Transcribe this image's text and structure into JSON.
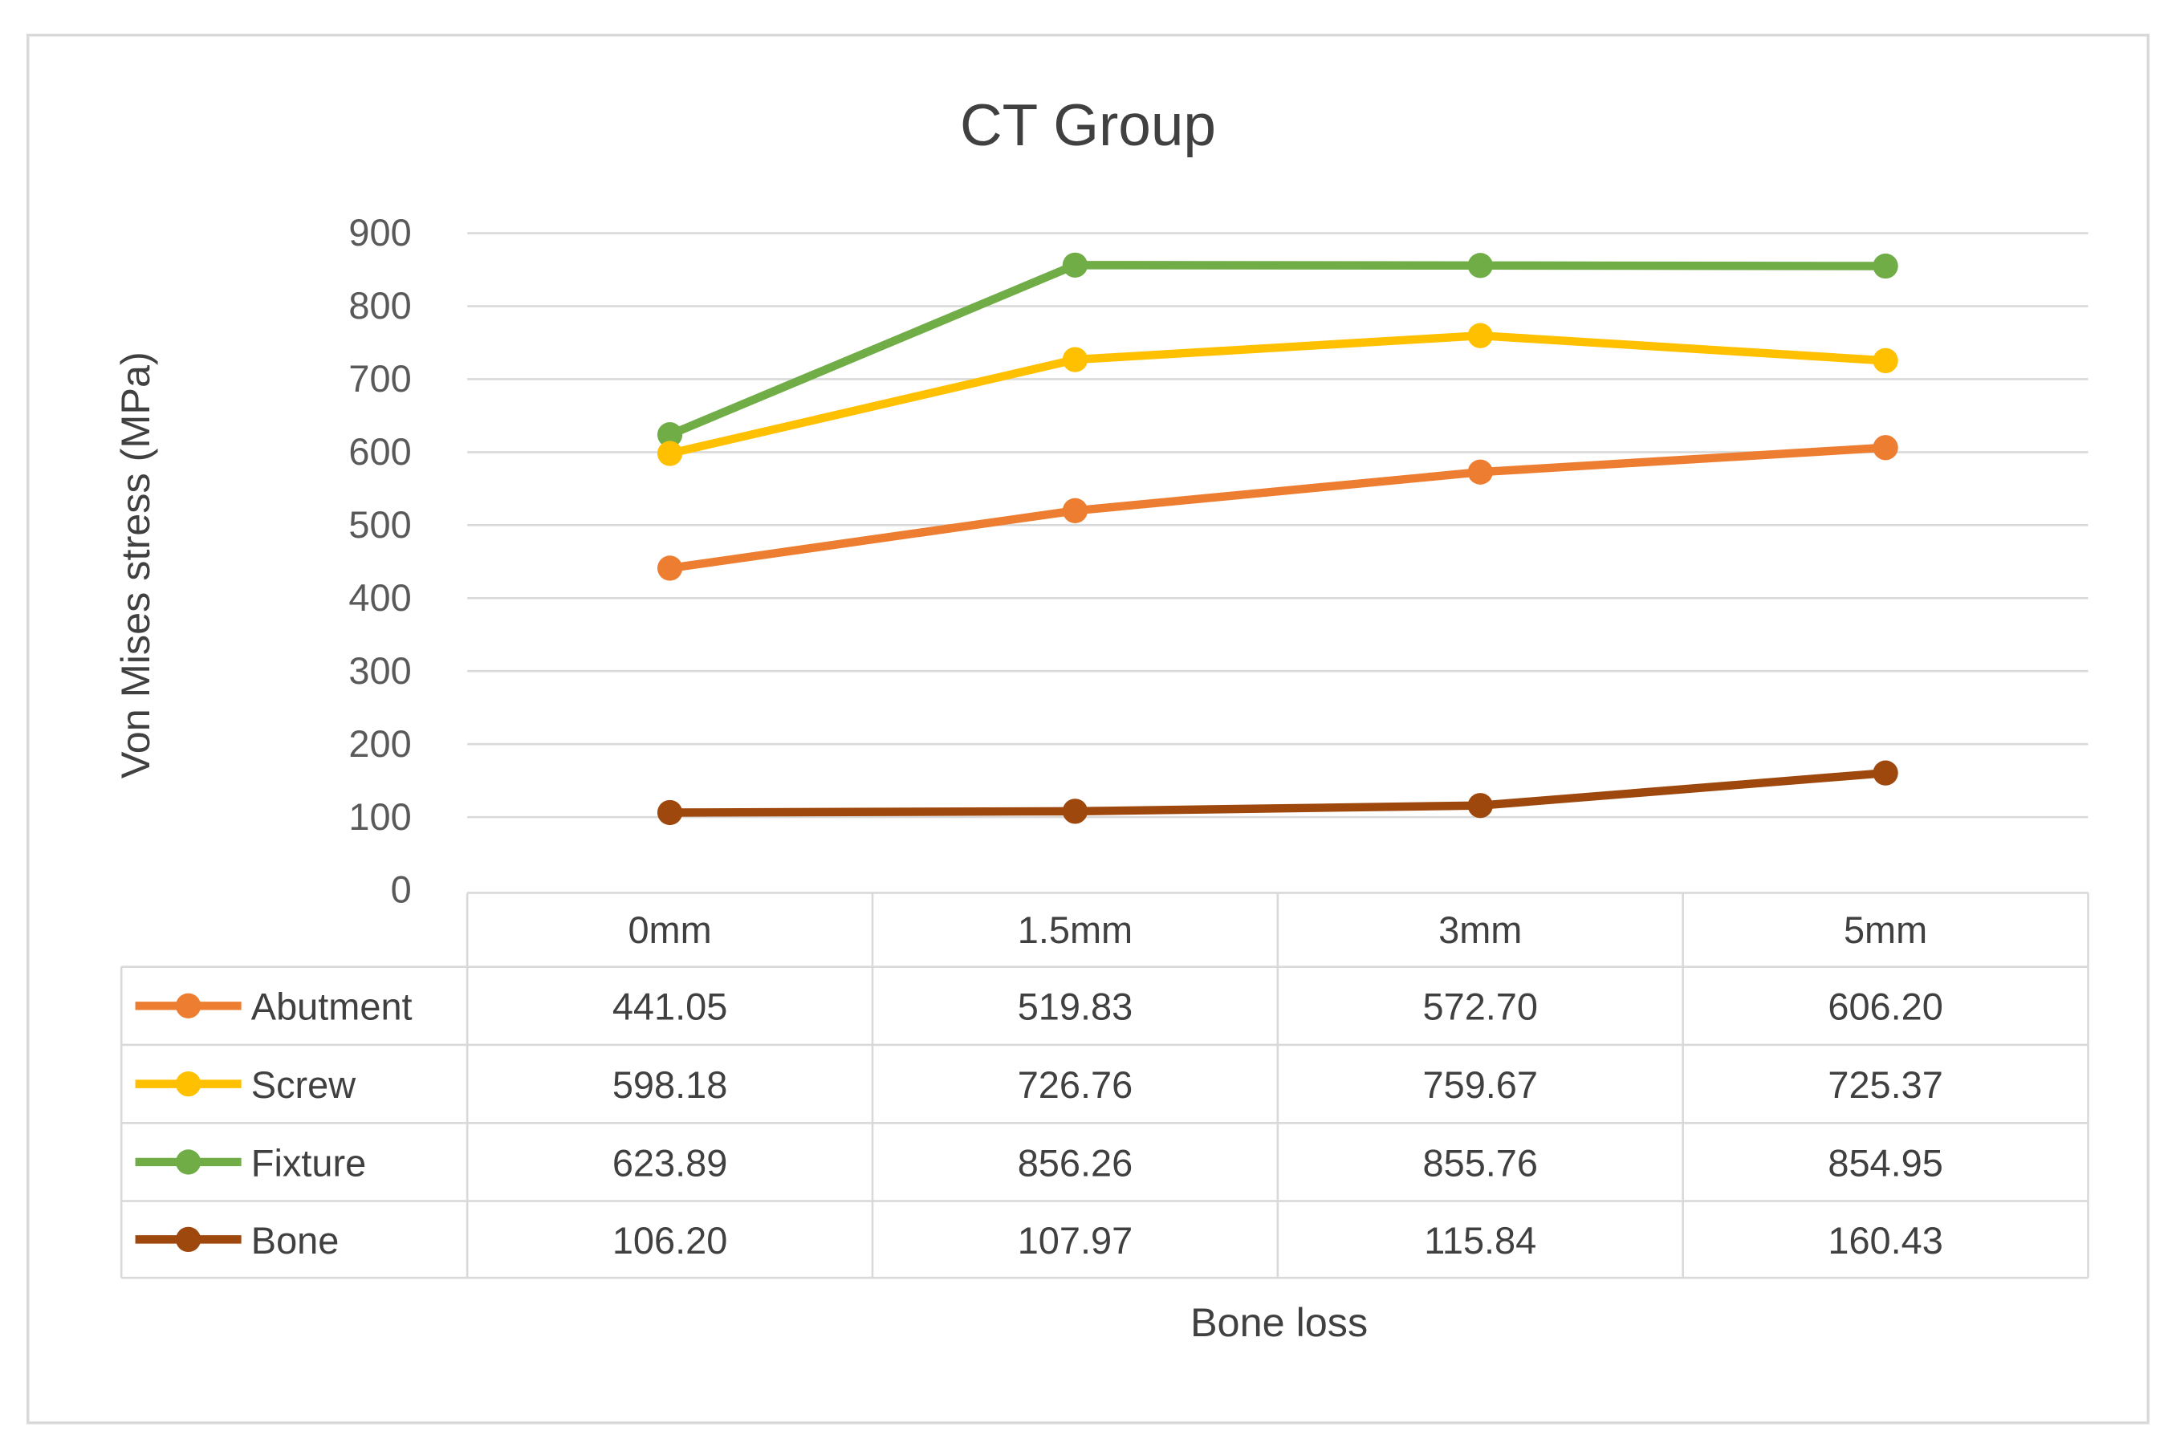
{
  "chart_data": {
    "type": "line",
    "title": "CT Group",
    "xlabel": "Bone loss",
    "ylabel": "Von Mises stress (MPa)",
    "categories": [
      "0mm",
      "1.5mm",
      "3mm",
      "5mm"
    ],
    "ylim": [
      0,
      900
    ],
    "yticks": [
      0,
      100,
      200,
      300,
      400,
      500,
      600,
      700,
      800,
      900
    ],
    "grid": true,
    "legend": "data-table-bottom",
    "series": [
      {
        "name": "Abutment",
        "color": "#ED7D31",
        "values": [
          441.05,
          519.83,
          572.7,
          606.2
        ],
        "labels": [
          "441.05",
          "519.83",
          "572.70",
          "606.20"
        ]
      },
      {
        "name": "Screw",
        "color": "#FFC000",
        "values": [
          598.18,
          726.76,
          759.67,
          725.37
        ],
        "labels": [
          "598.18",
          "726.76",
          "759.67",
          "725.37"
        ]
      },
      {
        "name": "Fixture",
        "color": "#70AD47",
        "values": [
          623.89,
          856.26,
          855.76,
          854.95
        ],
        "labels": [
          "623.89",
          "856.26",
          "855.76",
          "854.95"
        ]
      },
      {
        "name": "Bone",
        "color": "#9E480E",
        "values": [
          106.2,
          107.97,
          115.84,
          160.43
        ],
        "labels": [
          "106.20",
          "107.97",
          "115.84",
          "160.43"
        ]
      }
    ]
  }
}
